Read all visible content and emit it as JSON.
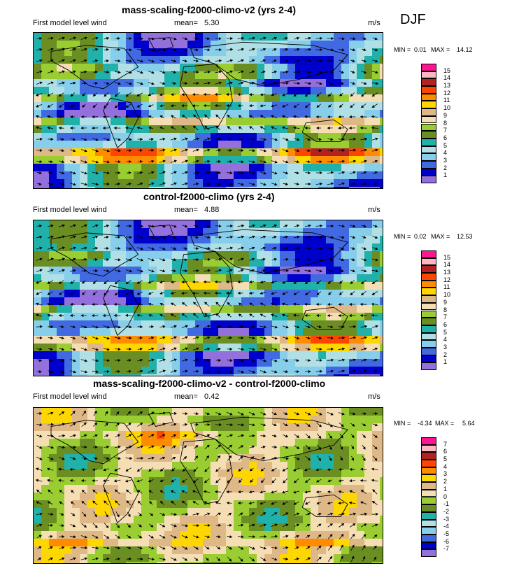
{
  "season": "DJF",
  "panels": [
    {
      "title": "mass-scaling-f2000-climo-v2 (yrs 2-4)",
      "left_label": "First model level wind",
      "mean_label": "mean=",
      "mean_value": "5.30",
      "units": "m/s",
      "min_label": "MIN =",
      "min_value": "0.01",
      "max_label": "MAX =",
      "max_value": "14.12",
      "palette": "speed"
    },
    {
      "title": "control-f2000-climo (yrs 2-4)",
      "left_label": "First model level wind",
      "mean_label": "mean=",
      "mean_value": "4.88",
      "units": "m/s",
      "min_label": "MIN =",
      "min_value": "0.02",
      "max_label": "MAX =",
      "max_value": "12.53",
      "palette": "speed"
    },
    {
      "title": "mass-scaling-f2000-climo-v2 - control-f2000-climo",
      "left_label": "First model level wind",
      "mean_label": "mean=",
      "mean_value": "0.42",
      "units": "m/s",
      "min_label": "MIN =",
      "min_value": "-4.34",
      "max_label": "MAX =",
      "max_value": "5.64",
      "palette": "diff"
    }
  ],
  "legends": {
    "speed": {
      "labels": [
        "15",
        "14",
        "13",
        "12",
        "11",
        "10",
        "9",
        "8",
        "7",
        "6",
        "5",
        "4",
        "3",
        "2",
        "1"
      ],
      "colors": [
        "#ff1493",
        "#ffb6c1",
        "#b22222",
        "#ff4500",
        "#ff8c00",
        "#ffd700",
        "#deb887",
        "#f5deb3",
        "#9acd32",
        "#6b8e23",
        "#20b2aa",
        "#b0e0e6",
        "#87ceeb",
        "#4169e1",
        "#0000cd",
        "#9370db"
      ]
    },
    "diff": {
      "labels": [
        "7",
        "6",
        "5",
        "4",
        "3",
        "2",
        "1",
        "0",
        "-1",
        "-2",
        "-3",
        "-4",
        "-5",
        "-6",
        "-7"
      ],
      "colors": [
        "#ff1493",
        "#ffb6c1",
        "#b22222",
        "#ff4500",
        "#ff8c00",
        "#ffd700",
        "#deb887",
        "#f5deb3",
        "#9acd32",
        "#6b8e23",
        "#20b2aa",
        "#b0e0e6",
        "#87ceeb",
        "#4169e1",
        "#0000cd",
        "#9370db"
      ]
    }
  }
}
